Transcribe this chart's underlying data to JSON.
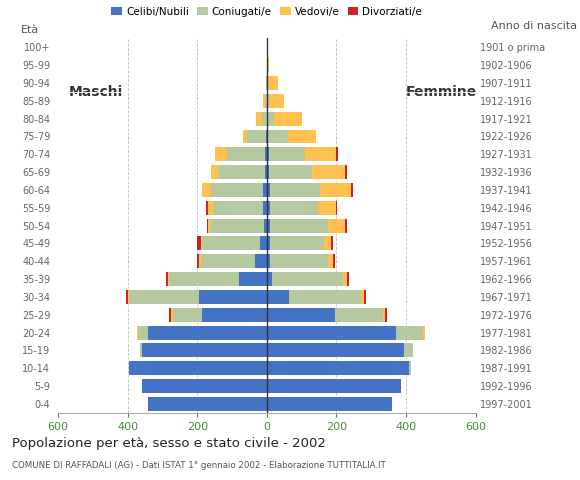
{
  "age_groups": [
    "0-4",
    "5-9",
    "10-14",
    "15-19",
    "20-24",
    "25-29",
    "30-34",
    "35-39",
    "40-44",
    "45-49",
    "50-54",
    "55-59",
    "60-64",
    "65-69",
    "70-74",
    "75-79",
    "80-84",
    "85-89",
    "90-94",
    "95-99",
    "100+"
  ],
  "birth_years": [
    "1997-2001",
    "1992-1996",
    "1987-1991",
    "1982-1986",
    "1977-1981",
    "1972-1976",
    "1967-1971",
    "1962-1966",
    "1957-1961",
    "1952-1956",
    "1947-1951",
    "1942-1946",
    "1937-1941",
    "1932-1936",
    "1927-1931",
    "1922-1926",
    "1917-1921",
    "1912-1916",
    "1907-1911",
    "1902-1906",
    "1901 o prima"
  ],
  "males": {
    "celibi": [
      340,
      360,
      395,
      360,
      340,
      185,
      195,
      80,
      35,
      20,
      8,
      10,
      10,
      5,
      5,
      2,
      0,
      0,
      0,
      0,
      0
    ],
    "coniugati": [
      0,
      0,
      0,
      5,
      30,
      85,
      200,
      200,
      155,
      165,
      155,
      145,
      150,
      135,
      110,
      55,
      15,
      5,
      2,
      0,
      0
    ],
    "vedovi": [
      0,
      0,
      0,
      0,
      3,
      5,
      5,
      5,
      5,
      5,
      5,
      15,
      25,
      20,
      35,
      10,
      15,
      5,
      0,
      0,
      0
    ],
    "divorziati": [
      0,
      0,
      0,
      0,
      0,
      5,
      5,
      5,
      5,
      10,
      5,
      5,
      0,
      0,
      0,
      0,
      0,
      0,
      0,
      0,
      0
    ]
  },
  "females": {
    "nubili": [
      360,
      385,
      410,
      395,
      370,
      195,
      65,
      15,
      10,
      10,
      10,
      8,
      8,
      5,
      5,
      2,
      0,
      0,
      0,
      0,
      0
    ],
    "coniugate": [
      0,
      0,
      5,
      25,
      80,
      140,
      205,
      205,
      165,
      155,
      165,
      140,
      145,
      125,
      105,
      60,
      20,
      5,
      2,
      0,
      0
    ],
    "vedove": [
      0,
      0,
      0,
      0,
      5,
      5,
      10,
      10,
      15,
      20,
      50,
      50,
      90,
      95,
      90,
      80,
      80,
      45,
      30,
      5,
      0
    ],
    "divorziate": [
      0,
      0,
      0,
      0,
      0,
      5,
      5,
      5,
      5,
      5,
      5,
      5,
      5,
      5,
      5,
      0,
      0,
      0,
      0,
      0,
      0
    ]
  },
  "colors": {
    "celibi": "#4472c4",
    "coniugati": "#b5c9a0",
    "vedovi": "#ffc050",
    "divorziati": "#cc2222"
  },
  "title": "Popolazione per età, sesso e stato civile - 2002",
  "subtitle": "COMUNE DI RAFFADALI (AG) - Dati ISTAT 1° gennaio 2002 - Elaborazione TUTTITALIA.IT",
  "xlabel_left": "Maschi",
  "xlabel_right": "Femmine",
  "ylabel_left": "Età",
  "ylabel_right": "Anno di nascita",
  "legend_labels": [
    "Celibi/Nubili",
    "Coniugati/e",
    "Vedovi/e",
    "Divorziati/e"
  ],
  "xlim": 600,
  "background_color": "#ffffff",
  "grid_color": "#bbbbbb"
}
